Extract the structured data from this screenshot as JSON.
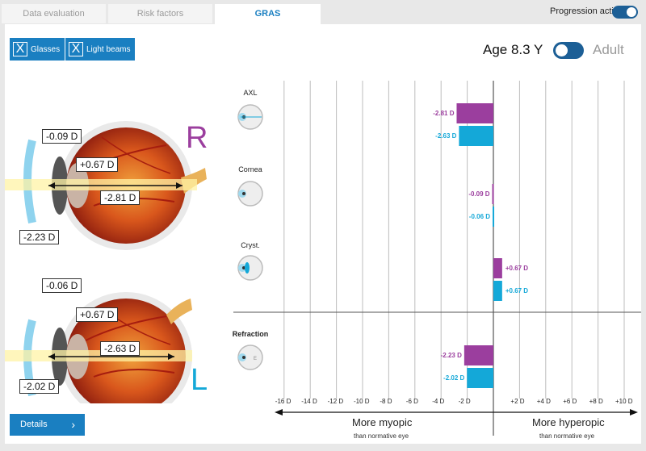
{
  "tabs": [
    {
      "label": "Data evaluation"
    },
    {
      "label": "Risk factors"
    },
    {
      "label": "GRAS"
    }
  ],
  "progression": {
    "label": "Progression active",
    "active": true
  },
  "buttons": {
    "glasses": "Glasses",
    "light_beams": "Light beams",
    "details": "Details",
    "check_mark": "X"
  },
  "age": {
    "label": "Age 8.3 Y",
    "adult_label": "Adult"
  },
  "eyes": {
    "right": {
      "letter": "R",
      "color": "#9b3e9e",
      "cornea": "-0.09 D",
      "lens": "+0.67 D",
      "axial": "-2.81 D",
      "refraction": "-2.23 D"
    },
    "left": {
      "letter": "L",
      "color": "#14a8d8",
      "cornea": "-0.06 D",
      "lens": "+0.67 D",
      "axial": "-2.63 D",
      "refraction": "-2.02 D"
    }
  },
  "chart_data": {
    "type": "bar",
    "orientation": "horizontal",
    "categories": [
      "AXL",
      "Cornea",
      "Cryst.",
      "Refraction"
    ],
    "series": [
      {
        "name": "R",
        "color": "#9b3e9e",
        "values": [
          -2.81,
          -0.09,
          0.67,
          -2.23
        ],
        "labels": [
          "-2.81 D",
          "-0.09 D",
          "+0.67 D",
          "-2.23 D"
        ]
      },
      {
        "name": "L",
        "color": "#14a8d8",
        "values": [
          -2.63,
          -0.06,
          0.67,
          -2.02
        ],
        "labels": [
          "-2.63 D",
          "-0.06 D",
          "+0.67 D",
          "-2.02 D"
        ]
      }
    ],
    "xlim": [
      -18,
      11
    ],
    "ticks": [
      -16,
      -14,
      -12,
      -10,
      -8,
      -6,
      -4,
      -2,
      2,
      4,
      6,
      8,
      10
    ],
    "tick_labels": [
      "-16 D",
      "-14 D",
      "-12 D",
      "-10 D",
      "-8 D",
      "-6 D",
      "-4 D",
      "-2 D",
      "+2 D",
      "+4 D",
      "+6 D",
      "+8 D",
      "+10 D"
    ],
    "left_caption": "More myopic",
    "right_caption": "More hyperopic",
    "sub_caption": "than normative eye",
    "grid": true
  }
}
